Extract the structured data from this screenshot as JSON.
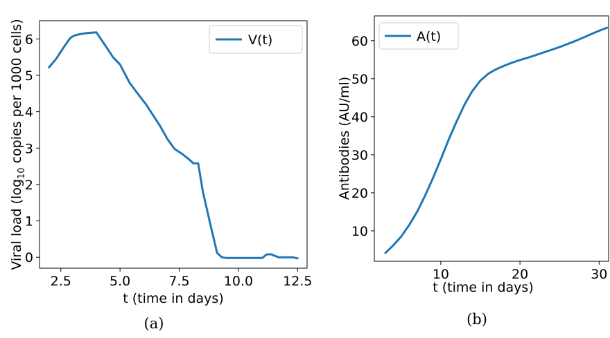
{
  "chart_data": [
    {
      "type": "line",
      "xlabel": "t (time in days)",
      "ylabel_main": "Viral load (log",
      "ylabel_sub": "10",
      "ylabel_rest": " copies per 1000 cells)",
      "caption": "(a)",
      "xlim": [
        1.6,
        12.9
      ],
      "ylim": [
        -0.3,
        6.5
      ],
      "xticks": [
        2.5,
        5.0,
        7.5,
        10.0,
        12.5
      ],
      "xtick_labels": [
        "2.5",
        "5.0",
        "7.5",
        "10.0",
        "12.5"
      ],
      "yticks": [
        0,
        1,
        2,
        3,
        4,
        5,
        6
      ],
      "ytick_labels": [
        "0",
        "1",
        "2",
        "3",
        "4",
        "5",
        "6"
      ],
      "legend_position": "top-right",
      "grid": false,
      "series": [
        {
          "name": "V(t)",
          "color": "#1f77b4",
          "x": [
            2.0,
            2.3,
            2.6,
            2.9,
            3.1,
            3.3,
            3.6,
            4.0,
            4.4,
            4.7,
            5.0,
            5.4,
            5.8,
            6.1,
            6.4,
            6.7,
            7.0,
            7.3,
            7.6,
            7.9,
            8.1,
            8.3,
            8.5,
            8.8,
            9.1,
            9.3,
            9.5,
            9.8,
            10.2,
            10.6,
            11.0,
            11.2,
            11.4,
            11.5,
            11.7,
            12.0,
            12.3,
            12.5
          ],
          "y": [
            5.22,
            5.45,
            5.75,
            6.03,
            6.1,
            6.13,
            6.16,
            6.18,
            5.8,
            5.5,
            5.3,
            4.8,
            4.45,
            4.2,
            3.9,
            3.6,
            3.25,
            2.98,
            2.85,
            2.7,
            2.58,
            2.58,
            1.8,
            0.95,
            0.12,
            0.0,
            -0.02,
            -0.02,
            -0.02,
            -0.02,
            -0.02,
            0.08,
            0.08,
            0.05,
            0.0,
            0.0,
            0.0,
            -0.03
          ]
        }
      ]
    },
    {
      "type": "line",
      "xlabel": "t (time in days)",
      "ylabel": "Antibodies (AU/ml)",
      "caption": "(b)",
      "xlim": [
        1.6,
        31.2
      ],
      "ylim": [
        2.0,
        66.5
      ],
      "xticks": [
        10,
        20,
        30
      ],
      "xtick_labels": [
        "10",
        "20",
        "30"
      ],
      "yticks": [
        10,
        20,
        30,
        40,
        50,
        60
      ],
      "ytick_labels": [
        "10",
        "20",
        "30",
        "40",
        "50",
        "60"
      ],
      "legend_position": "top-left",
      "grid": false,
      "series": [
        {
          "name": "A(t)",
          "color": "#1f77b4",
          "x": [
            3,
            4,
            5,
            6,
            7,
            8,
            9,
            10,
            11,
            12,
            13,
            14,
            15,
            16,
            17,
            18,
            19,
            20,
            21,
            22,
            23,
            24,
            25,
            26,
            27,
            28,
            29,
            30,
            31
          ],
          "y": [
            4.2,
            6.2,
            8.5,
            11.5,
            15.0,
            19.2,
            23.8,
            28.8,
            34.0,
            38.8,
            43.2,
            46.8,
            49.5,
            51.3,
            52.5,
            53.4,
            54.2,
            54.9,
            55.5,
            56.2,
            56.9,
            57.6,
            58.3,
            59.1,
            59.9,
            60.8,
            61.7,
            62.6,
            63.4
          ]
        }
      ]
    }
  ]
}
